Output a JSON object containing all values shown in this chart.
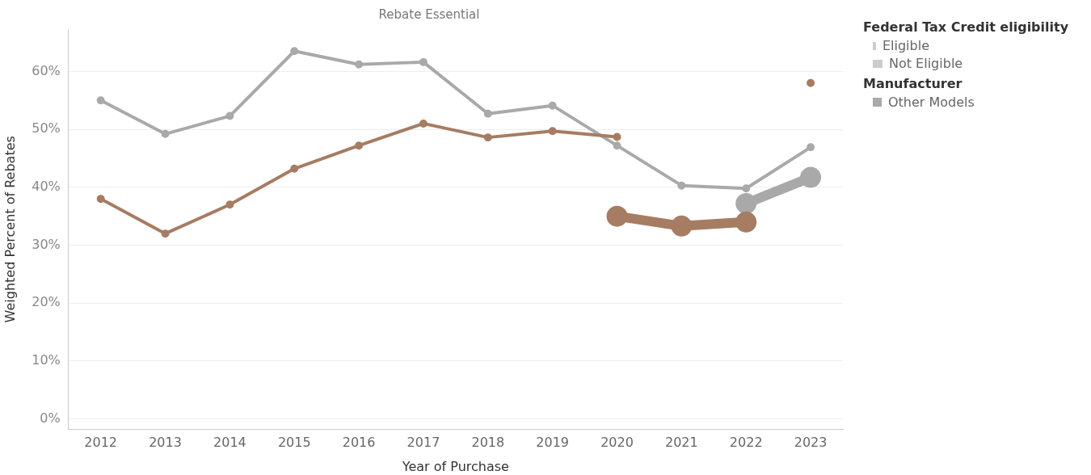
{
  "chart_data": {
    "type": "line",
    "title": "Rebate Essential",
    "xlabel": "Year of Purchase",
    "ylabel": "Weighted Percent of Rebates",
    "legend_title": "Federal Tax Credit eligibility",
    "annotations": [
      "Eligible",
      "Not Eligible",
      "Manufacturer"
    ],
    "categories": [
      "2012",
      "2013",
      "2014",
      "2015",
      "2016",
      "2017",
      "2018",
      "2019",
      "2020",
      "2021",
      "2022",
      "2023"
    ],
    "ylim": [
      -1.8,
      67.3
    ],
    "yticks": [
      {
        "value": 0,
        "label": "0%"
      },
      {
        "value": 10,
        "label": "10%"
      },
      {
        "value": 20,
        "label": "20%"
      },
      {
        "value": 30,
        "label": "30%"
      },
      {
        "value": 40,
        "label": "40%"
      },
      {
        "value": 50,
        "label": "50%"
      },
      {
        "value": 60,
        "label": "60%"
      }
    ],
    "grid": "y",
    "legend": "right",
    "marker": "circle",
    "series": [
      {
        "color": "#a67c62",
        "values": [
          38,
          32,
          37,
          43.2,
          47.2,
          51,
          48.6,
          49.7,
          48.7,
          null,
          null,
          58
        ]
      },
      {
        "color": "#a67c62",
        "values": [
          null,
          null,
          null,
          null,
          null,
          null,
          null,
          null,
          35,
          33.3,
          34,
          null
        ]
      },
      {
        "name": "Other Models",
        "color": "#a9a9a9",
        "values": [
          55,
          49.2,
          52.3,
          63.5,
          61.2,
          61.6,
          52.7,
          54.1,
          47.2,
          40.3,
          39.8,
          46.9
        ]
      },
      {
        "color": "#a9a9a9",
        "values": [
          null,
          null,
          null,
          null,
          null,
          null,
          null,
          null,
          null,
          null,
          37.2,
          41.7
        ]
      }
    ]
  }
}
